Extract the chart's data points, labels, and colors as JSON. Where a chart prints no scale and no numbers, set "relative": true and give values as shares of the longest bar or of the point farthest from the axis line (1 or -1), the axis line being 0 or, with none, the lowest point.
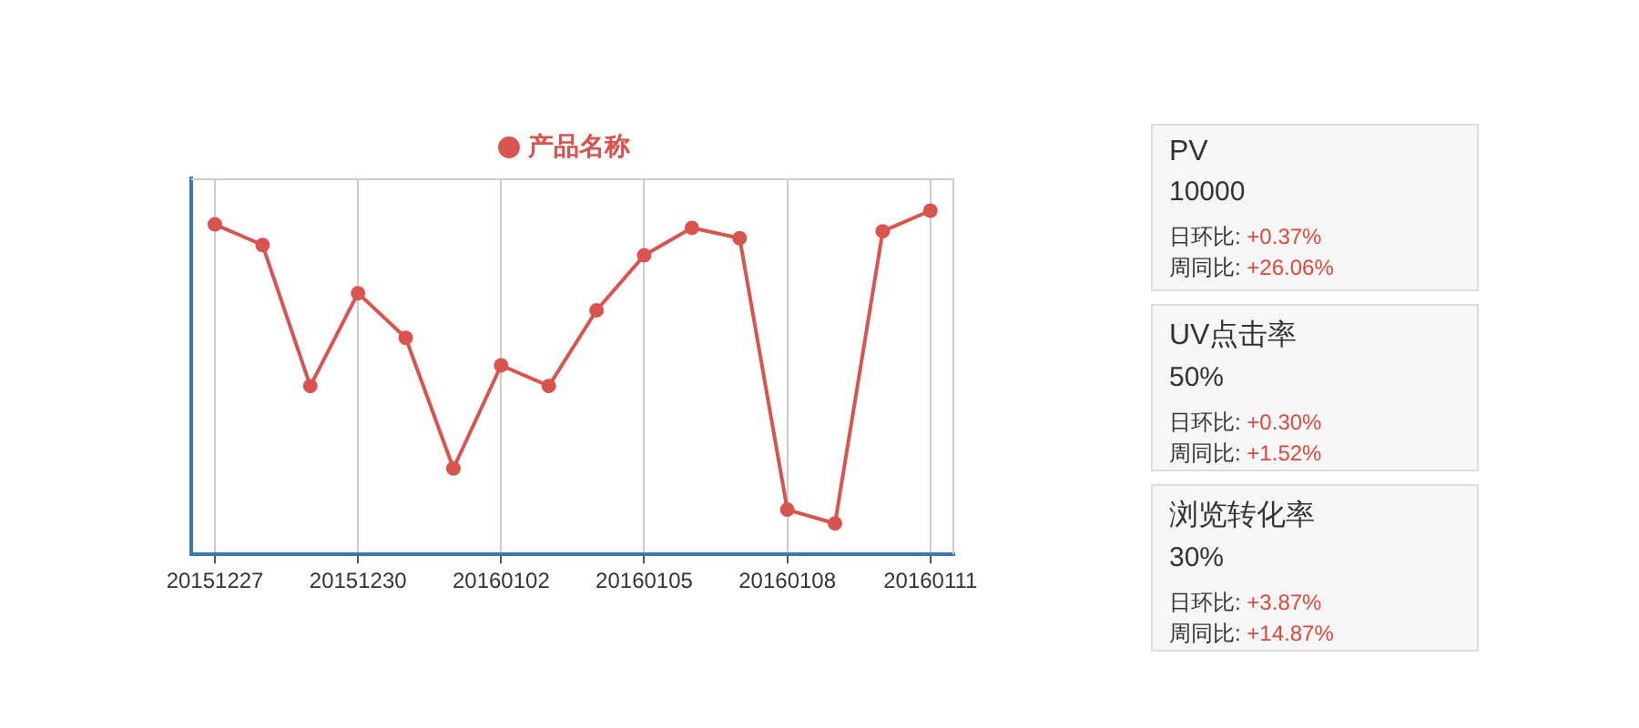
{
  "chart_data": [
    {
      "type": "line",
      "relative": true,
      "categories": [
        "20151227",
        null,
        null,
        "20151230",
        null,
        null,
        "20160102",
        null,
        null,
        "20160105",
        null,
        null,
        "20160108",
        null,
        null,
        "20160111"
      ],
      "series": [
        {
          "name": "产品名称",
          "color": "#d9534f",
          "values": [
            0.96,
            0.9,
            0.49,
            0.76,
            0.63,
            0.25,
            0.55,
            0.49,
            0.71,
            0.87,
            0.95,
            0.92,
            0.13,
            0.09,
            0.94,
            1
          ]
        }
      ],
      "legend": "top",
      "grid": "x",
      "marker": "circle",
      "line_style": "solid"
    },
    {
      "type": "other",
      "title": "PV",
      "annotations": [
        "10000",
        "日环比: +0.37%",
        "周同比: +26.06%"
      ]
    },
    {
      "type": "other",
      "title": "UV点击率",
      "annotations": [
        "50%",
        "日环比: +0.30%",
        "周同比: +1.52%"
      ]
    },
    {
      "type": "other",
      "title": "浏览转化率",
      "annotations": [
        "30%",
        "日环比: +3.87%",
        "周同比: +14.87%"
      ]
    }
  ]
}
